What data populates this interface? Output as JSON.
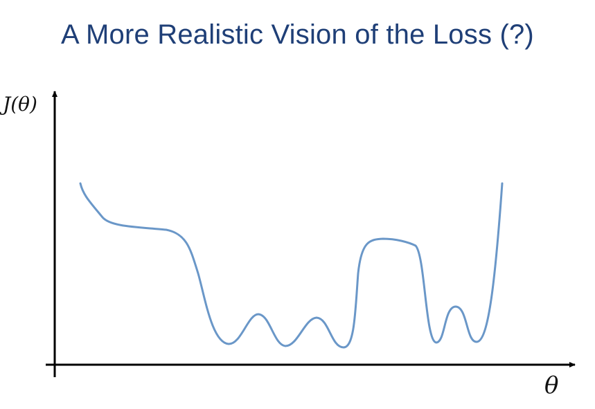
{
  "title": "A More Realistic Vision of the Loss (?)",
  "diagram": {
    "y_axis_label": "J(θ)",
    "x_axis_label": "θ",
    "curve_color": "#6a97c8",
    "axis_color": "#000000",
    "title_color": "#1f3f77"
  }
}
